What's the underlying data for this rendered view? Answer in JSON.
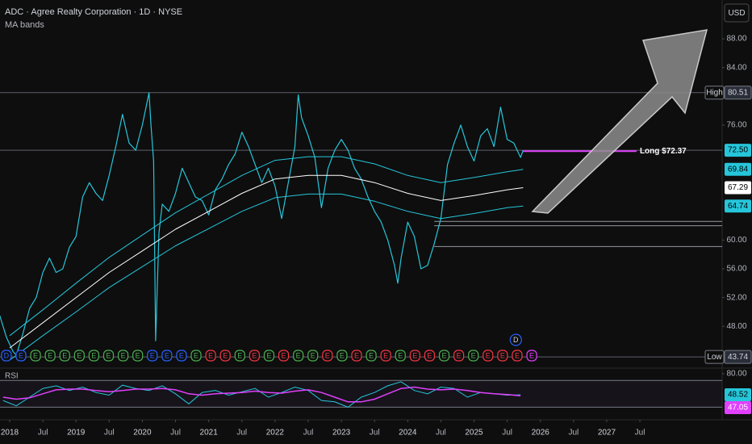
{
  "chart_data": {
    "type": "line",
    "title": "ADC · Agree Realty Corporation · 1D · NYSE",
    "subtitle": "MA bands",
    "currency": "USD",
    "xlim": [
      2017.854,
      2028.74
    ],
    "xticks": [
      2018,
      {
        "value": 2018.5,
        "label": "Jul"
      },
      2019,
      {
        "value": 2019.5,
        "label": "Jul"
      },
      2020,
      {
        "value": 2020.5,
        "label": "Jul"
      },
      2021,
      {
        "value": 2021.5,
        "label": "Jul"
      },
      2022,
      {
        "value": 2022.5,
        "label": "Jul"
      },
      2023,
      {
        "value": 2023.5,
        "label": "Jul"
      },
      2024,
      {
        "value": 2024.5,
        "label": "Jul"
      },
      2025,
      {
        "value": 2025.5,
        "label": "Jul"
      },
      2026,
      {
        "value": 2026.5,
        "label": "Jul"
      },
      2027,
      {
        "value": 2027.5,
        "label": "Jul"
      }
    ],
    "ylim": [
      42.3,
      93.4
    ],
    "yticks": [
      {
        "value": 88,
        "label": "88.00"
      },
      {
        "value": 84,
        "label": "84.00"
      },
      {
        "value": 76,
        "label": "76.00"
      },
      {
        "value": 60,
        "label": "60.00"
      },
      {
        "value": 56,
        "label": "56.00"
      },
      {
        "value": 52,
        "label": "52.00"
      },
      {
        "value": 48,
        "label": "48.00"
      }
    ],
    "series": [
      {
        "color": "#26c6da",
        "width": 1.2,
        "x": [
          2017.85,
          2017.95,
          2018.05,
          2018.1,
          2018.2,
          2018.3,
          2018.4,
          2018.5,
          2018.6,
          2018.7,
          2018.8,
          2018.9,
          2019.0,
          2019.1,
          2019.2,
          2019.3,
          2019.4,
          2019.5,
          2019.6,
          2019.7,
          2019.8,
          2019.9,
          2020.0,
          2020.1,
          2020.13,
          2020.17,
          2020.2,
          2020.25,
          2020.3,
          2020.4,
          2020.5,
          2020.6,
          2020.7,
          2020.8,
          2020.9,
          2021.0,
          2021.1,
          2021.2,
          2021.3,
          2021.4,
          2021.5,
          2021.6,
          2021.7,
          2021.8,
          2021.9,
          2022.0,
          2022.1,
          2022.2,
          2022.3,
          2022.35,
          2022.4,
          2022.5,
          2022.6,
          2022.7,
          2022.8,
          2022.9,
          2023.0,
          2023.1,
          2023.2,
          2023.3,
          2023.4,
          2023.5,
          2023.6,
          2023.7,
          2023.8,
          2023.85,
          2023.9,
          2024.0,
          2024.1,
          2024.2,
          2024.3,
          2024.4,
          2024.5,
          2024.6,
          2024.7,
          2024.8,
          2024.9,
          2025.0,
          2025.1,
          2025.2,
          2025.3,
          2025.4,
          2025.5,
          2025.6,
          2025.7,
          2025.74
        ],
        "values": [
          49.5,
          46.5,
          44.5,
          44,
          47,
          50.5,
          52,
          55.5,
          57.5,
          55.5,
          56,
          59,
          60.5,
          66,
          68,
          66.5,
          65.5,
          69,
          73,
          77.5,
          73.5,
          72.5,
          76,
          80.5,
          76,
          71,
          46,
          61,
          65,
          64,
          66.5,
          70,
          68,
          66,
          65.5,
          63.5,
          67,
          68.5,
          70.5,
          72,
          75,
          73,
          70.5,
          68,
          70,
          67.5,
          63,
          68,
          73,
          80.2,
          77,
          74.5,
          71.5,
          64.5,
          70,
          72.5,
          74,
          72.5,
          70,
          68.5,
          66,
          64,
          62.5,
          60,
          56.5,
          54,
          57.5,
          62.5,
          60.5,
          56,
          56.5,
          59.5,
          63,
          70.5,
          73.5,
          76,
          73,
          71,
          74.5,
          75.5,
          73,
          78.5,
          74,
          73.5,
          71.5,
          72.5
        ]
      },
      {
        "color": "#26c6da",
        "width": 1,
        "x": [
          2018.0,
          2018.5,
          2019.0,
          2019.5,
          2020.0,
          2020.5,
          2021.0,
          2021.5,
          2022.0,
          2022.5,
          2023.0,
          2023.5,
          2024.0,
          2024.5,
          2025.0,
          2025.5,
          2025.74
        ],
        "values": [
          46.7,
          50.3,
          54,
          57.6,
          60.7,
          63.8,
          66.4,
          69,
          71.1,
          71.6,
          71.6,
          70.6,
          69,
          68,
          68.7,
          69.5,
          69.84
        ]
      },
      {
        "color": "#ffffff",
        "width": 1,
        "x": [
          2018.0,
          2018.5,
          2019.0,
          2019.5,
          2020.0,
          2020.5,
          2021.0,
          2021.5,
          2022.0,
          2022.5,
          2023.0,
          2023.5,
          2024.0,
          2024.5,
          2025.0,
          2025.5,
          2025.74
        ],
        "values": [
          45,
          48.5,
          52,
          55.5,
          58.5,
          61.5,
          64,
          66.5,
          68.5,
          69,
          69,
          68,
          66.5,
          65.5,
          66.2,
          67,
          67.29
        ]
      },
      {
        "color": "#26c6da",
        "width": 1,
        "x": [
          2018.0,
          2018.5,
          2019.0,
          2019.5,
          2020.0,
          2020.5,
          2021.0,
          2021.5,
          2022.0,
          2022.5,
          2023.0,
          2023.5,
          2024.0,
          2024.5,
          2025.0,
          2025.5,
          2025.74
        ],
        "values": [
          43.3,
          46.7,
          50,
          53.4,
          56.3,
          59.2,
          61.6,
          64,
          65.9,
          66.4,
          66.4,
          65.4,
          64,
          63,
          63.7,
          64.5,
          64.74
        ]
      }
    ],
    "extremes": [
      {
        "tag": "High",
        "value": 80.51,
        "label": "80.51"
      },
      {
        "tag": "Low",
        "value": 43.74,
        "label": "43.74"
      }
    ],
    "last_labels": [
      {
        "value": 72.5,
        "label": "72.50",
        "color": "#26c6da",
        "text_color": "#000000",
        "line": true
      },
      {
        "value": 69.84,
        "label": "69.84",
        "color": "#26c6da",
        "text_color": "#000000",
        "line": false
      },
      {
        "value": 67.29,
        "label": "67.29",
        "color": "#ffffff",
        "text_color": "#000000",
        "line": false
      },
      {
        "value": 64.74,
        "label": "64.74",
        "color": "#26c6da",
        "text_color": "#000000",
        "line": false
      }
    ],
    "position": {
      "text": "Long $72.37",
      "value": 72.37,
      "from": 2025.74,
      "to": 2027.45,
      "color": "#e040fb"
    },
    "levels": [
      {
        "value": 62.6,
        "from": 2024.4
      },
      {
        "value": 62.0,
        "from": 2024.4
      },
      {
        "value": 59.1,
        "from": 2024.4
      }
    ],
    "events": [
      {
        "x": 2017.95,
        "label": "D",
        "color": "#2962ff"
      },
      {
        "x": 2018.17,
        "label": "E",
        "color": "#2962ff"
      },
      {
        "x": 2018.39,
        "label": "E",
        "color": "#4caf50"
      },
      {
        "x": 2018.61,
        "label": "E",
        "color": "#4caf50"
      },
      {
        "x": 2018.83,
        "label": "E",
        "color": "#4caf50"
      },
      {
        "x": 2019.05,
        "label": "E",
        "color": "#4caf50"
      },
      {
        "x": 2019.27,
        "label": "E",
        "color": "#4caf50"
      },
      {
        "x": 2019.49,
        "label": "E",
        "color": "#4caf50"
      },
      {
        "x": 2019.71,
        "label": "E",
        "color": "#4caf50"
      },
      {
        "x": 2019.93,
        "label": "E",
        "color": "#4caf50"
      },
      {
        "x": 2020.15,
        "label": "E",
        "color": "#2962ff"
      },
      {
        "x": 2020.37,
        "label": "E",
        "color": "#2962ff"
      },
      {
        "x": 2020.59,
        "label": "E",
        "color": "#2962ff"
      },
      {
        "x": 2020.81,
        "label": "E",
        "color": "#4caf50"
      },
      {
        "x": 2021.03,
        "label": "E",
        "color": "#f23645"
      },
      {
        "x": 2021.25,
        "label": "E",
        "color": "#f23645"
      },
      {
        "x": 2021.47,
        "label": "E",
        "color": "#4caf50"
      },
      {
        "x": 2021.69,
        "label": "E",
        "color": "#f23645"
      },
      {
        "x": 2021.91,
        "label": "E",
        "color": "#4caf50"
      },
      {
        "x": 2022.13,
        "label": "E",
        "color": "#f23645"
      },
      {
        "x": 2022.35,
        "label": "E",
        "color": "#4caf50"
      },
      {
        "x": 2022.57,
        "label": "E",
        "color": "#4caf50"
      },
      {
        "x": 2022.79,
        "label": "E",
        "color": "#f23645"
      },
      {
        "x": 2023.01,
        "label": "E",
        "color": "#4caf50"
      },
      {
        "x": 2023.23,
        "label": "E",
        "color": "#f23645"
      },
      {
        "x": 2023.45,
        "label": "E",
        "color": "#4caf50"
      },
      {
        "x": 2023.67,
        "label": "E",
        "color": "#f23645"
      },
      {
        "x": 2023.89,
        "label": "E",
        "color": "#4caf50"
      },
      {
        "x": 2024.11,
        "label": "E",
        "color": "#f23645"
      },
      {
        "x": 2024.33,
        "label": "E",
        "color": "#f23645"
      },
      {
        "x": 2024.55,
        "label": "E",
        "color": "#4caf50"
      },
      {
        "x": 2024.77,
        "label": "E",
        "color": "#f23645"
      },
      {
        "x": 2024.99,
        "label": "E",
        "color": "#4caf50"
      },
      {
        "x": 2025.21,
        "label": "E",
        "color": "#f23645"
      },
      {
        "x": 2025.43,
        "label": "E",
        "color": "#f23645"
      },
      {
        "x": 2025.65,
        "label": "E",
        "color": "#f23645"
      },
      {
        "x": 2025.87,
        "label": "E",
        "color": "#e040fb"
      }
    ],
    "dividends": [
      {
        "x": 2025.63,
        "label": "D",
        "color": "#2962ff"
      }
    ],
    "rsi": {
      "title": "RSI",
      "ylim": [
        16,
        86
      ],
      "yticks": [
        {
          "value": 80,
          "label": "80.00"
        }
      ],
      "levels": [
        70,
        30
      ],
      "x": [
        2017.9,
        2018.1,
        2018.3,
        2018.5,
        2018.7,
        2018.9,
        2019.1,
        2019.3,
        2019.5,
        2019.7,
        2019.9,
        2020.1,
        2020.3,
        2020.5,
        2020.7,
        2020.9,
        2021.1,
        2021.3,
        2021.5,
        2021.7,
        2021.9,
        2022.1,
        2022.3,
        2022.5,
        2022.7,
        2022.9,
        2023.1,
        2023.3,
        2023.5,
        2023.7,
        2023.9,
        2024.1,
        2024.3,
        2024.5,
        2024.7,
        2024.9,
        2025.1,
        2025.3,
        2025.5,
        2025.7
      ],
      "values": [
        40,
        32,
        45,
        58,
        62,
        55,
        60,
        52,
        48,
        63,
        58,
        55,
        62,
        50,
        35,
        52,
        55,
        48,
        53,
        58,
        45,
        52,
        60,
        55,
        40,
        38,
        30,
        45,
        52,
        62,
        68,
        55,
        50,
        60,
        58,
        45,
        52,
        50,
        48,
        48.52
      ],
      "ma_values": [
        45,
        42,
        44,
        50,
        56,
        57,
        57,
        55,
        53,
        55,
        57,
        57,
        58,
        56,
        50,
        48,
        50,
        51,
        52,
        54,
        52,
        51,
        54,
        56,
        52,
        45,
        38,
        38,
        42,
        50,
        58,
        60,
        57,
        56,
        57,
        55,
        52,
        50,
        49,
        47.05
      ],
      "color": "#26c6da",
      "ma_color": "#e040fb",
      "last_labels": [
        {
          "value": 48.52,
          "label": "48.52",
          "color": "#26c6da",
          "text_color": "#000000"
        },
        {
          "value": 47.05,
          "label": "47.05",
          "color": "#e040fb",
          "text_color": "#ffffff"
        }
      ]
    }
  }
}
